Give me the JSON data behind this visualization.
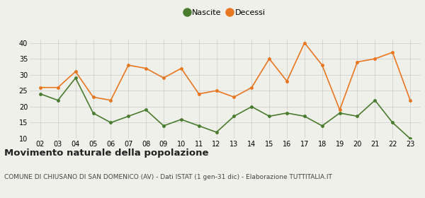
{
  "years": [
    2,
    3,
    4,
    5,
    6,
    7,
    8,
    9,
    10,
    11,
    12,
    13,
    14,
    15,
    16,
    17,
    18,
    19,
    20,
    21,
    22,
    23
  ],
  "nascite": [
    24,
    22,
    29,
    18,
    15,
    17,
    19,
    14,
    16,
    14,
    12,
    17,
    20,
    17,
    18,
    17,
    14,
    18,
    17,
    22,
    15,
    10
  ],
  "decessi": [
    26,
    26,
    31,
    23,
    22,
    33,
    32,
    29,
    32,
    24,
    25,
    23,
    26,
    35,
    28,
    40,
    33,
    19,
    34,
    35,
    37,
    22
  ],
  "nascite_color": "#4a7c2f",
  "decessi_color": "#e87722",
  "background_color": "#f0f0eb",
  "ylim": [
    10,
    41
  ],
  "yticks": [
    10,
    15,
    20,
    25,
    30,
    35,
    40
  ],
  "title": "Movimento naturale della popolazione",
  "subtitle": "COMUNE DI CHIUSANO DI SAN DOMENICO (AV) - Dati ISTAT (1 gen-31 dic) - Elaborazione TUTTITALIA.IT",
  "legend_nascite": "Nascite",
  "legend_decessi": "Decessi",
  "title_fontsize": 9.5,
  "subtitle_fontsize": 6.5,
  "legend_fontsize": 8,
  "axis_fontsize": 7,
  "marker_size": 3.5,
  "line_width": 1.2
}
